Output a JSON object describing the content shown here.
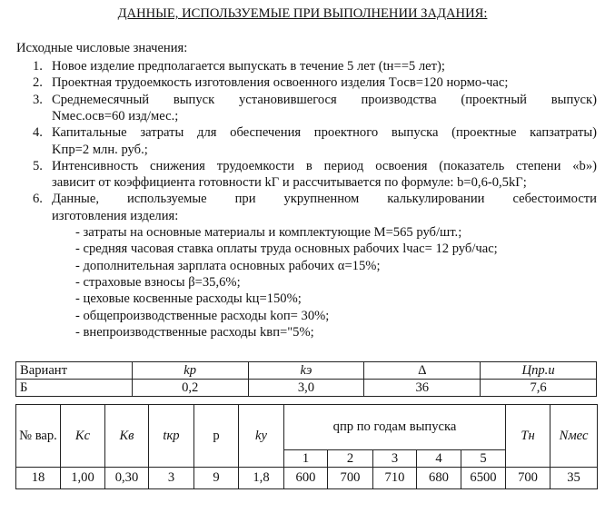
{
  "title": "ДАННЫЕ, ИСПОЛЬЗУЕМЫЕ ПРИ ВЫПОЛНЕНИИ ЗАДАНИЯ:",
  "intro": "Исходные числовые значения:",
  "items": [
    {
      "n": "1.",
      "lines": [
        "Новое изделие предполагается выпускать в течение 5 лет (tн==5 лет);"
      ]
    },
    {
      "n": "2.",
      "lines": [
        "Проектная трудоемкость изготовления освоенного изделия Tосв=120 нормо-час;"
      ]
    },
    {
      "n": "3.",
      "lines": [
        "Среднемесячный выпуск установившегося производства (проектный выпуск)",
        "Nмес.осв=60 изд/мес.;"
      ]
    },
    {
      "n": "4.",
      "lines": [
        "Капитальные затраты для обеспечения проектного выпуска (проектные капзатраты)",
        "Kпр=2 млн. руб.;"
      ]
    },
    {
      "n": "5.",
      "lines": [
        "Интенсивность снижения трудоемкости в период освоения (показатель степени «b»)",
        "зависит от коэффициента готовности kГ и рассчитывается по формуле: b=0,6-0,5kГ;"
      ]
    },
    {
      "n": "6.",
      "lines": [
        "Данные, используемые при укрупненном калькулировании себестоимости",
        "изготовления изделия:"
      ]
    }
  ],
  "subitems": [
    "- затраты на основные материалы и комплектующие M=565 руб/шт.;",
    "- средняя часовая ставка оплаты труда основных рабочих lчас= 12 руб/час;",
    "- дополнительная зарплата основных рабочих α=15%;",
    "- страховые взносы β=35,6%;",
    "- цеховые косвенные расходы kц=150%;",
    "- общепроизводственные расходы kоп= 30%;",
    "- внепроизводственные расходы kвп=\"5%;"
  ],
  "table1": {
    "headers": [
      "Вариант",
      "kр",
      "kэ",
      "Δ",
      "Цпр.и"
    ],
    "row": [
      "Б",
      "0,2",
      "3,0",
      "36",
      "7,6"
    ]
  },
  "table2": {
    "headers": [
      "№ вар.",
      "Kс",
      "Kв",
      "tкр",
      "p",
      "kу",
      "qпр  по годам выпуска",
      "Tн",
      "Nмес"
    ],
    "years": [
      "1",
      "2",
      "3",
      "4",
      "5"
    ],
    "row": [
      "18",
      "1,00",
      "0,30",
      "3",
      "9",
      "1,8",
      "600",
      "700",
      "710",
      "680",
      "6500",
      "700",
      "35"
    ]
  }
}
